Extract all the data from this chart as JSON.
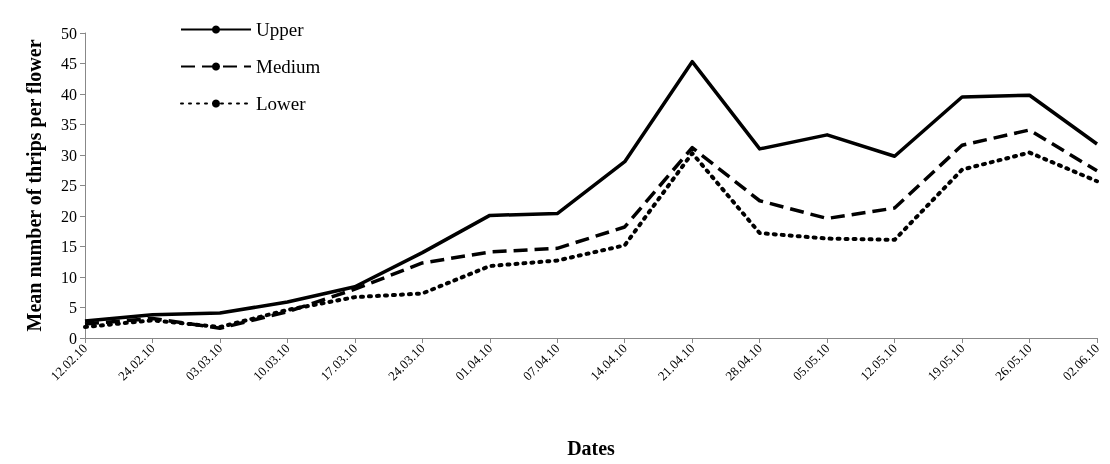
{
  "chart_data": {
    "type": "line",
    "xlabel": "Dates",
    "ylabel": "Mean number of thrips per flower",
    "categories": [
      "12.02.10",
      "24.02.10",
      "03.03.10",
      "10.03.10",
      "17.03.10",
      "24.03.10",
      "01.04.10",
      "07.04.10",
      "14.04.10",
      "21.04.10",
      "28.04.10",
      "05.05.10",
      "12.05.10",
      "19.05.10",
      "26.05.10",
      "02.06.10"
    ],
    "series": [
      {
        "name": "Upper",
        "color": "#000000",
        "line_style": "solid",
        "values": [
          2.8,
          3.8,
          4.1,
          5.9,
          8.4,
          14,
          20.1,
          20.4,
          28.9,
          45.3,
          31,
          33.3,
          29.8,
          39.5,
          39.8,
          31.8
        ]
      },
      {
        "name": "Medium",
        "color": "#000000",
        "line_style": "dashed",
        "values": [
          2.3,
          3.2,
          1.6,
          4.3,
          8,
          12.3,
          14.1,
          14.7,
          18.2,
          31.2,
          22.5,
          19.6,
          21.3,
          31.6,
          34.1,
          27.4
        ]
      },
      {
        "name": "Lower",
        "color": "#000000",
        "line_style": "dotted",
        "values": [
          1.8,
          2.9,
          1.8,
          4.6,
          6.7,
          7.3,
          11.8,
          12.7,
          15.2,
          30.3,
          17.2,
          16.3,
          16.1,
          27.6,
          30.4,
          25.7
        ]
      }
    ],
    "ylim": [
      0,
      50
    ],
    "yticks": [
      0,
      5,
      10,
      15,
      20,
      25,
      30,
      35,
      40,
      45,
      50
    ],
    "grid": false,
    "legend": "top left",
    "marker": "none"
  }
}
